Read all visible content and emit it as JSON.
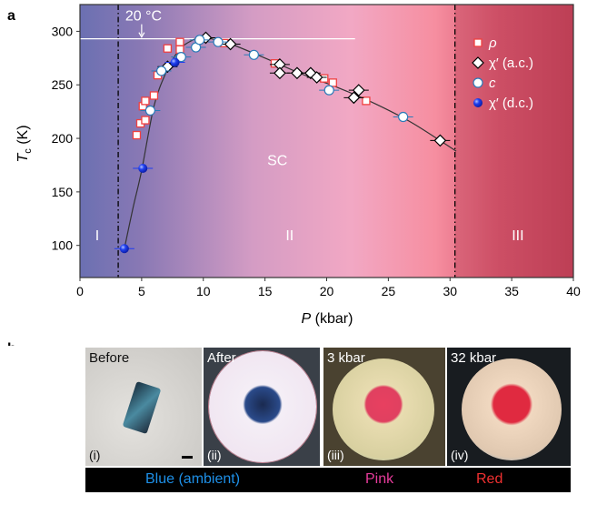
{
  "panel_a_label": "a",
  "panel_b_label": "b",
  "chart_data": {
    "type": "scatter",
    "xlabel": "P (kbar)",
    "xlabel_main": "P",
    "xlabel_unit": " (kbar)",
    "ylabel_main": "T",
    "ylabel_sub": "c",
    "ylabel_unit": " (K)",
    "xlim": [
      0,
      40
    ],
    "ylim": [
      70,
      325
    ],
    "xticks": [
      0,
      5,
      10,
      15,
      20,
      25,
      30,
      35,
      40
    ],
    "yticks": [
      100,
      150,
      200,
      250,
      300
    ],
    "room_temperature": {
      "label": "20 °C",
      "T": 293,
      "P_range": [
        0,
        22.3
      ],
      "arrow_P": 5
    },
    "phase_boundaries": [
      3.1,
      30.4
    ],
    "regions": [
      {
        "label": "I",
        "P": 1.4,
        "T": 105
      },
      {
        "label": "II",
        "P": 17,
        "T": 105
      },
      {
        "label": "III",
        "P": 35.5,
        "T": 105
      },
      {
        "label": "SC",
        "P": 16,
        "T": 175
      }
    ],
    "series": [
      {
        "name": "ρ",
        "marker": "square",
        "color": "#f04040",
        "points": [
          [
            4.6,
            203
          ],
          [
            4.9,
            214
          ],
          [
            5.3,
            217
          ],
          [
            5.1,
            230
          ],
          [
            5.3,
            235
          ],
          [
            6.0,
            240
          ],
          [
            6.3,
            259
          ],
          [
            7.1,
            284
          ],
          [
            8.1,
            290
          ],
          [
            8.1,
            283
          ],
          [
            11.7,
            289
          ],
          [
            15.8,
            270
          ],
          [
            19.8,
            256
          ],
          [
            20.5,
            252
          ],
          [
            23.2,
            235
          ]
        ]
      },
      {
        "name": "χ′ (a.c.)",
        "marker": "diamond",
        "color": "#000000",
        "points": [
          [
            7.1,
            267
          ],
          [
            10.2,
            294
          ],
          [
            12.2,
            288
          ],
          [
            16.2,
            269
          ],
          [
            16.2,
            261
          ],
          [
            17.6,
            261
          ],
          [
            18.7,
            261
          ],
          [
            19.2,
            257
          ],
          [
            22.6,
            245
          ],
          [
            22.2,
            238
          ],
          [
            29.2,
            198
          ]
        ]
      },
      {
        "name": "c",
        "marker": "circle",
        "color": "#2a7ab8",
        "points": [
          [
            5.7,
            226
          ],
          [
            6.6,
            263
          ],
          [
            8.2,
            276
          ],
          [
            9.4,
            285
          ],
          [
            9.7,
            292
          ],
          [
            11.2,
            290
          ],
          [
            14.1,
            278
          ],
          [
            20.2,
            245
          ],
          [
            26.2,
            220
          ]
        ]
      },
      {
        "name": "χ′ (d.c.)",
        "marker": "ball",
        "color": "#1f3cf0",
        "points": [
          [
            3.6,
            97
          ],
          [
            5.1,
            172
          ],
          [
            7.7,
            271
          ]
        ]
      }
    ],
    "fit_curve": [
      [
        3.6,
        97
      ],
      [
        4.3,
        135
      ],
      [
        5,
        170
      ],
      [
        6,
        230
      ],
      [
        7,
        262
      ],
      [
        8,
        282
      ],
      [
        9,
        291
      ],
      [
        10,
        294
      ],
      [
        12,
        289
      ],
      [
        15,
        275
      ],
      [
        18,
        260
      ],
      [
        21,
        247
      ],
      [
        24,
        232
      ],
      [
        27,
        214
      ],
      [
        30.5,
        188
      ]
    ],
    "legend_position": "top-right",
    "legend": [
      "ρ",
      "χ′ (a.c.)",
      "c",
      "χ′ (d.c.)"
    ]
  },
  "photos": [
    {
      "title": "Before",
      "index": "(i)"
    },
    {
      "title": "After",
      "index": "(ii)"
    },
    {
      "title": "3 kbar",
      "index": "(iii)"
    },
    {
      "title": "32 kbar",
      "index": "(iv)"
    }
  ],
  "color_labels": [
    {
      "text": "Blue (ambient)",
      "color": "#1e90e8"
    },
    {
      "text": "Pink",
      "color": "#e83c9c"
    },
    {
      "text": "Red",
      "color": "#f03030"
    }
  ]
}
